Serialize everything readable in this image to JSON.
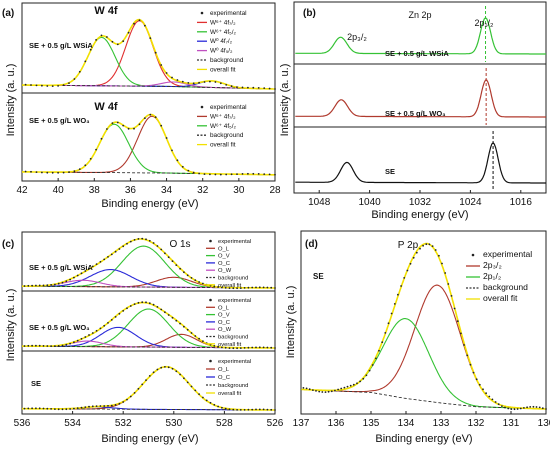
{
  "figure": {
    "panels": [
      {
        "id": "a",
        "panel_label": "(a)",
        "xlabel": "Binding energy (eV)",
        "ylabel": "Intensity (a. u.)",
        "xticks": [
          "42",
          "40",
          "38",
          "36",
          "34",
          "32",
          "30",
          "28"
        ],
        "subpanels": [
          {
            "sample": "SE + 0.5 g/L WSiA",
            "title": "W 4f",
            "legend": [
              {
                "label": "experimental",
                "color": "#222222",
                "kind": "dot"
              },
              {
                "label": "W⁶⁺ 4f₇/₂",
                "color": "#e03030",
                "kind": "line"
              },
              {
                "label": "W⁶⁺ 4f₅/₂",
                "color": "#35c235",
                "kind": "line"
              },
              {
                "label": "W⁰ 4f₇/₂",
                "color": "#2a2ad8",
                "kind": "line"
              },
              {
                "label": "W⁰ 4f₅/₂",
                "color": "#c050c0",
                "kind": "line"
              },
              {
                "label": "background",
                "color": "#333333",
                "kind": "dash"
              },
              {
                "label": "overall fit",
                "color": "#f2e000",
                "kind": "line"
              }
            ]
          },
          {
            "sample": "SE + 0.5 g/L WO₃",
            "title": "W 4f",
            "legend": [
              {
                "label": "experimental",
                "color": "#222222",
                "kind": "dot"
              },
              {
                "label": "W⁶⁺ 4f₇/₂",
                "color": "#b03a2e",
                "kind": "line"
              },
              {
                "label": "W⁶⁺ 4f₅/₂",
                "color": "#35c235",
                "kind": "line"
              },
              {
                "label": "background",
                "color": "#333333",
                "kind": "dash"
              },
              {
                "label": "overall fit",
                "color": "#f2e000",
                "kind": "line"
              }
            ]
          }
        ]
      },
      {
        "id": "b",
        "panel_label": "(b)",
        "title": "Zn 2p",
        "peak_labels": [
          "2p₃/₂",
          "2p₁/₂"
        ],
        "xlabel": "Binding energy (eV)",
        "ylabel": "Intensity (a. u.)",
        "xticks": [
          "1048",
          "1040",
          "1032",
          "1024",
          "1016"
        ],
        "subpanels": [
          {
            "sample": "SE + 0.5 g/L WSiA",
            "color": "#35c235"
          },
          {
            "sample": "SE + 0.5 g/L WO₃",
            "color": "#b03a2e"
          },
          {
            "sample": "SE",
            "color": "#111111"
          }
        ]
      },
      {
        "id": "c",
        "panel_label": "(c)",
        "title": "O 1s",
        "xlabel": "Binding energy (eV)",
        "ylabel": "Intensity (a. u.)",
        "xticks": [
          "536",
          "534",
          "532",
          "530",
          "528",
          "526"
        ],
        "subpanels": [
          {
            "sample": "SE + 0.5 g/L WSiA",
            "legend": [
              {
                "label": "experimental",
                "color": "#222222",
                "kind": "dot"
              },
              {
                "label": "O_L",
                "color": "#b03a2e",
                "kind": "line"
              },
              {
                "label": "O_V",
                "color": "#35c235",
                "kind": "line"
              },
              {
                "label": "O_C",
                "color": "#2a2ad8",
                "kind": "line"
              },
              {
                "label": "O_W",
                "color": "#c050c0",
                "kind": "line"
              },
              {
                "label": "background",
                "color": "#333333",
                "kind": "dash"
              },
              {
                "label": "overall fit",
                "color": "#f2e000",
                "kind": "line"
              }
            ]
          },
          {
            "sample": "SE + 0.5 g/L WO₃",
            "legend": [
              {
                "label": "experimental",
                "color": "#222222",
                "kind": "dot"
              },
              {
                "label": "O_L",
                "color": "#b03a2e",
                "kind": "line"
              },
              {
                "label": "O_V",
                "color": "#35c235",
                "kind": "line"
              },
              {
                "label": "O_C",
                "color": "#2a2ad8",
                "kind": "line"
              },
              {
                "label": "O_W",
                "color": "#c050c0",
                "kind": "line"
              },
              {
                "label": "background",
                "color": "#333333",
                "kind": "dash"
              },
              {
                "label": "overall fit",
                "color": "#f2e000",
                "kind": "line"
              }
            ]
          },
          {
            "sample": "SE",
            "legend": [
              {
                "label": "experimental",
                "color": "#222222",
                "kind": "dot"
              },
              {
                "label": "O_L",
                "color": "#b03a2e",
                "kind": "line"
              },
              {
                "label": "O_C",
                "color": "#2a2ad8",
                "kind": "line"
              },
              {
                "label": "background",
                "color": "#333333",
                "kind": "dash"
              },
              {
                "label": "overall fit",
                "color": "#f2e000",
                "kind": "line"
              }
            ]
          }
        ]
      },
      {
        "id": "d",
        "panel_label": "(d)",
        "title": "P 2p",
        "sample": "SE",
        "xlabel": "Binding energy (eV)",
        "ylabel": "Intensity (a. u.)",
        "xticks": [
          "137",
          "136",
          "135",
          "134",
          "133",
          "132",
          "131",
          "130"
        ],
        "legend": [
          {
            "label": "experimental",
            "color": "#222222",
            "kind": "dot"
          },
          {
            "label": "2p₃/₂",
            "color": "#b03a2e",
            "kind": "line"
          },
          {
            "label": "2p₁/₂",
            "color": "#35c235",
            "kind": "line"
          },
          {
            "label": "background",
            "color": "#333333",
            "kind": "dash"
          },
          {
            "label": "overall fit",
            "color": "#f2e000",
            "kind": "line"
          }
        ]
      }
    ]
  },
  "chart_data": [
    {
      "type": "line",
      "panel": "a",
      "sample": "SE + 0.5 g/L WSiA",
      "xlabel": "Binding energy (eV)",
      "ylabel": "Intensity (a. u.)",
      "xlim": [
        42,
        28
      ],
      "ylim": [
        0,
        1.1
      ],
      "peaks": [
        {
          "name": "W⁶⁺ 4f₇/₂",
          "center": 35.5,
          "height": 1.0,
          "width": 0.75,
          "color": "#e03030"
        },
        {
          "name": "W⁶⁺ 4f₅/₂",
          "center": 37.6,
          "height": 0.74,
          "width": 0.75,
          "color": "#35c235"
        },
        {
          "name": "W⁰ 4f₇/₂",
          "center": 31.5,
          "height": 0.1,
          "width": 0.7,
          "color": "#2a2ad8"
        },
        {
          "name": "W⁰ 4f₅/₂",
          "center": 33.6,
          "height": 0.07,
          "width": 0.7,
          "color": "#c050c0"
        }
      ],
      "background": [
        [
          42,
          0.06
        ],
        [
          34,
          0.04
        ],
        [
          28,
          0.0
        ]
      ]
    },
    {
      "type": "line",
      "panel": "a",
      "sample": "SE + 0.5 g/L WO₃",
      "xlabel": "Binding energy (eV)",
      "ylabel": "Intensity (a. u.)",
      "xlim": [
        42,
        28
      ],
      "ylim": [
        0,
        1.1
      ],
      "peaks": [
        {
          "name": "W⁶⁺ 4f₇/₂",
          "center": 34.8,
          "height": 0.96,
          "width": 0.8,
          "color": "#b03a2e"
        },
        {
          "name": "W⁶⁺ 4f₅/₂",
          "center": 36.9,
          "height": 0.82,
          "width": 0.8,
          "color": "#35c235"
        }
      ],
      "background": [
        [
          42,
          0.07
        ],
        [
          34,
          0.05
        ],
        [
          28,
          0.02
        ]
      ]
    },
    {
      "type": "line",
      "panel": "b",
      "xlabel": "Binding energy (eV)",
      "ylabel": "Intensity (a. u.)",
      "xlim": [
        1052,
        1012
      ],
      "series": [
        {
          "name": "SE + 0.5 g/L WSiA",
          "color": "#35c235",
          "peaks": [
            {
              "center": 1044.6,
              "height": 0.45,
              "width": 1.0
            },
            {
              "center": 1021.6,
              "height": 1.0,
              "width": 0.8
            }
          ]
        },
        {
          "name": "SE + 0.5 g/L WO₃",
          "color": "#b03a2e",
          "peaks": [
            {
              "center": 1044.5,
              "height": 0.45,
              "width": 1.0
            },
            {
              "center": 1021.5,
              "height": 1.0,
              "width": 0.8
            }
          ]
        },
        {
          "name": "SE",
          "color": "#111111",
          "peaks": [
            {
              "center": 1043.6,
              "height": 0.5,
              "width": 1.0
            },
            {
              "center": 1020.4,
              "height": 1.0,
              "width": 0.8
            }
          ]
        }
      ]
    },
    {
      "type": "line",
      "panel": "c",
      "sample": "SE + 0.5 g/L WSiA",
      "xlabel": "Binding energy (eV)",
      "ylabel": "Intensity (a. u.)",
      "xlim": [
        536,
        526
      ],
      "ylim": [
        0,
        1.1
      ],
      "peaks": [
        {
          "name": "O_L",
          "center": 530.0,
          "height": 0.22,
          "width": 0.7,
          "color": "#b03a2e"
        },
        {
          "name": "O_V",
          "center": 531.2,
          "height": 0.9,
          "width": 0.85,
          "color": "#35c235"
        },
        {
          "name": "O_C",
          "center": 532.5,
          "height": 0.38,
          "width": 0.8,
          "color": "#2a2ad8"
        },
        {
          "name": "O_W",
          "center": 533.6,
          "height": 0.14,
          "width": 0.7,
          "color": "#c050c0"
        }
      ],
      "background": [
        [
          536,
          0.04
        ],
        [
          526,
          0.0
        ]
      ]
    },
    {
      "type": "line",
      "panel": "c",
      "sample": "SE + 0.5 g/L WO₃",
      "xlabel": "Binding energy (eV)",
      "ylabel": "Intensity (a. u.)",
      "xlim": [
        536,
        526
      ],
      "ylim": [
        0,
        1.1
      ],
      "peaks": [
        {
          "name": "O_L",
          "center": 529.7,
          "height": 0.28,
          "width": 0.6,
          "color": "#b03a2e"
        },
        {
          "name": "O_V",
          "center": 531.0,
          "height": 0.82,
          "width": 0.8,
          "color": "#35c235"
        },
        {
          "name": "O_C",
          "center": 532.2,
          "height": 0.42,
          "width": 0.7,
          "color": "#2a2ad8"
        },
        {
          "name": "O_W",
          "center": 533.4,
          "height": 0.12,
          "width": 0.6,
          "color": "#c050c0"
        }
      ],
      "background": [
        [
          536,
          0.04
        ],
        [
          526,
          0.0
        ]
      ]
    },
    {
      "type": "line",
      "panel": "c",
      "sample": "SE",
      "xlabel": "Binding energy (eV)",
      "ylabel": "Intensity (a. u.)",
      "xlim": [
        536,
        526
      ],
      "ylim": [
        0,
        1.1
      ],
      "peaks": [
        {
          "name": "O_L",
          "center": 530.3,
          "height": 1.0,
          "width": 0.9,
          "color": "#b03a2e"
        },
        {
          "name": "O_C",
          "center": 533.0,
          "height": 0.05,
          "width": 0.6,
          "color": "#2a2ad8"
        }
      ],
      "background": [
        [
          536,
          0.03
        ],
        [
          526,
          0.0
        ]
      ]
    },
    {
      "type": "line",
      "panel": "d",
      "sample": "SE",
      "xlabel": "Binding energy (eV)",
      "ylabel": "Intensity (a. u.)",
      "xlim": [
        137,
        130
      ],
      "ylim": [
        0,
        1.05
      ],
      "peaks": [
        {
          "name": "2p₃/₂",
          "center": 133.1,
          "height": 0.78,
          "width": 0.65,
          "color": "#b03a2e"
        },
        {
          "name": "2p₁/₂",
          "center": 134.0,
          "height": 0.53,
          "width": 0.65,
          "color": "#35c235"
        }
      ],
      "background": [
        [
          137,
          0.13
        ],
        [
          135,
          0.11
        ],
        [
          134,
          0.07
        ],
        [
          133,
          0.04
        ],
        [
          132,
          0.015
        ],
        [
          130,
          0.0
        ]
      ]
    }
  ]
}
